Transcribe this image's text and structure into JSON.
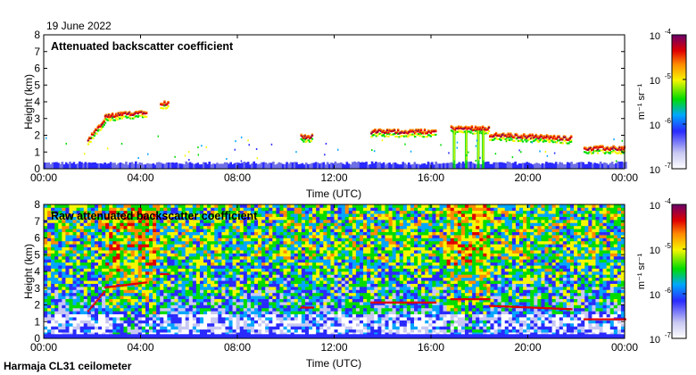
{
  "date_label": "19 June 2022",
  "footer": "Harmaja CL31 ceilometer",
  "chart_data": [
    {
      "type": "heatmap",
      "title": "Attenuated backscatter coefficient",
      "xlabel": "Time (UTC)",
      "ylabel": "Height (km)",
      "x_ticks": [
        "00:00",
        "04:00",
        "08:00",
        "12:00",
        "16:00",
        "20:00",
        "00:00"
      ],
      "xlim_hours": [
        0,
        24
      ],
      "y_ticks": [
        0,
        1,
        2,
        3,
        4,
        5,
        6,
        7,
        8
      ],
      "ylim_km": [
        0,
        8
      ],
      "colorbar": {
        "scale": "log",
        "ticks": [
          "10^-7",
          "10^-6",
          "10^-5",
          "10^-4"
        ],
        "range": [
          1e-07,
          0.0001
        ],
        "unit": "m^-1 sr^-1"
      },
      "features": {
        "surface_layer_top_km": 0.4,
        "cloud_layers": [
          {
            "start_h": 1.8,
            "end_h": 2.5,
            "height_km": [
              1.7,
              2.9
            ]
          },
          {
            "start_h": 2.5,
            "end_h": 4.2,
            "height_km": [
              3.1,
              3.4
            ]
          },
          {
            "start_h": 4.8,
            "end_h": 5.1,
            "height_km": 3.9
          },
          {
            "start_h": 10.6,
            "end_h": 11.1,
            "height_km": 1.9
          },
          {
            "start_h": 13.5,
            "end_h": 16.2,
            "height_km": 2.2
          },
          {
            "start_h": 16.8,
            "end_h": 18.4,
            "height_km": 2.4
          },
          {
            "start_h": 18.4,
            "end_h": 21.8,
            "height_km": [
              2.0,
              1.8
            ]
          },
          {
            "start_h": 22.3,
            "end_h": 24.0,
            "height_km": 1.2
          }
        ]
      }
    },
    {
      "type": "heatmap",
      "title": "Raw attenuated backscatter coefficient",
      "xlabel": "Time (UTC)",
      "ylabel": "Height (km)",
      "x_ticks": [
        "00:00",
        "04:00",
        "08:00",
        "12:00",
        "16:00",
        "20:00",
        "00:00"
      ],
      "xlim_hours": [
        0,
        24
      ],
      "y_ticks": [
        0,
        1,
        2,
        3,
        4,
        5,
        6,
        7,
        8
      ],
      "ylim_km": [
        0,
        8
      ],
      "colorbar": {
        "scale": "log",
        "ticks": [
          "10^-7",
          "10^-6",
          "10^-5",
          "10^-4"
        ],
        "range": [
          1e-07,
          0.0001
        ],
        "unit": "m^-1 sr^-1"
      }
    }
  ]
}
